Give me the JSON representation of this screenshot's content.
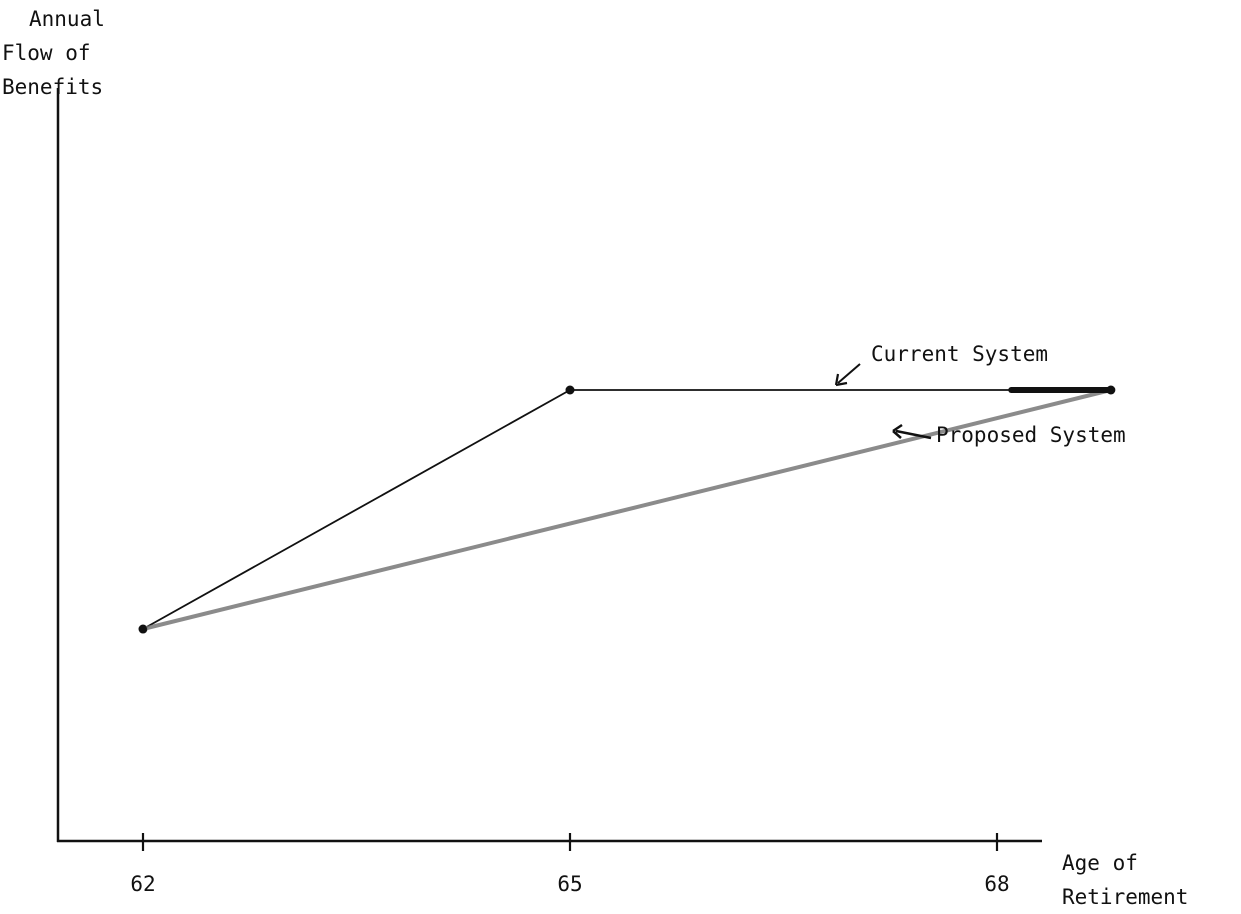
{
  "chart_data": {
    "type": "line",
    "ylabel_lines": [
      "Annual",
      "Flow of",
      "Benefits"
    ],
    "xlabel_lines": [
      "Age of",
      "Retirement"
    ],
    "x_ticks": [
      62,
      65,
      68
    ],
    "xlim": [
      61.4,
      69.0
    ],
    "ylim": [
      0,
      1
    ],
    "series": [
      {
        "name": "Current System",
        "points": [
          [
            62,
            0.47
          ],
          [
            65,
            1.0
          ],
          [
            68.8,
            1.0
          ]
        ],
        "color": "#111111",
        "style": "thin solid"
      },
      {
        "name": "Proposed System",
        "points": [
          [
            62,
            0.47
          ],
          [
            68.8,
            1.0
          ]
        ],
        "color": "#777777",
        "style": "thick shaded"
      }
    ],
    "annotations": [
      {
        "text": "Current System",
        "series": "Current System"
      },
      {
        "text": "Proposed System",
        "series": "Proposed System"
      }
    ]
  }
}
